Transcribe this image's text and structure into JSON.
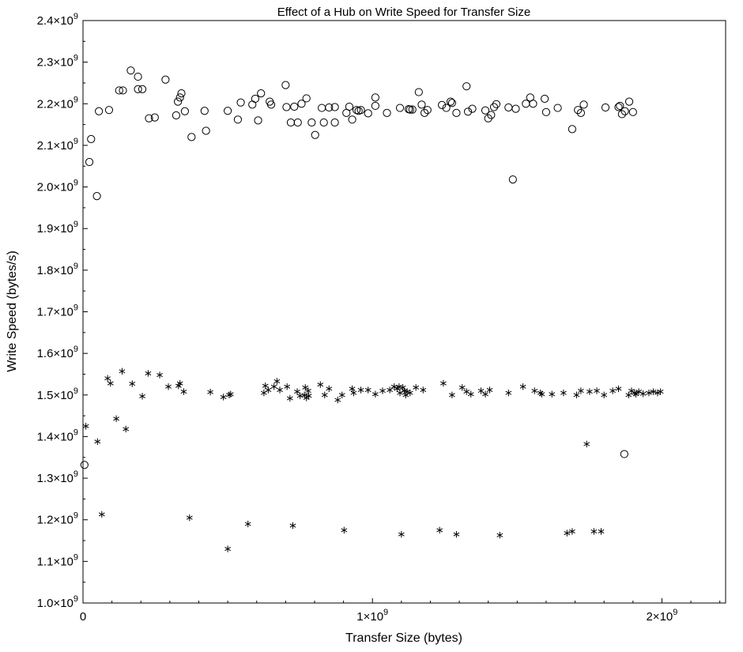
{
  "chart_data": {
    "type": "scatter",
    "title": "Effect of a Hub on Write Speed for Transfer Size",
    "xlabel": "Transfer Size (bytes)",
    "ylabel": "Write Speed (bytes/s)",
    "xlim": [
      0,
      2220000000
    ],
    "ylim": [
      1000000000,
      2400000000
    ],
    "grid": false,
    "x_ticks": [
      {
        "value": 0,
        "label": "0"
      },
      {
        "value": 1000000000,
        "label": "1×10",
        "exp": "9"
      },
      {
        "value": 2000000000,
        "label": "2×10",
        "exp": "9"
      }
    ],
    "y_ticks": [
      {
        "value": 1000000000,
        "label": "1.0×10",
        "exp": "9"
      },
      {
        "value": 1100000000,
        "label": "1.1×10",
        "exp": "9"
      },
      {
        "value": 1200000000,
        "label": "1.2×10",
        "exp": "9"
      },
      {
        "value": 1300000000,
        "label": "1.3×10",
        "exp": "9"
      },
      {
        "value": 1400000000,
        "label": "1.4×10",
        "exp": "9"
      },
      {
        "value": 1500000000,
        "label": "1.5×10",
        "exp": "9"
      },
      {
        "value": 1600000000,
        "label": "1.6×10",
        "exp": "9"
      },
      {
        "value": 1700000000,
        "label": "1.7×10",
        "exp": "9"
      },
      {
        "value": 1800000000,
        "label": "1.8×10",
        "exp": "9"
      },
      {
        "value": 1900000000,
        "label": "1.9×10",
        "exp": "9"
      },
      {
        "value": 2000000000,
        "label": "2.0×10",
        "exp": "9"
      },
      {
        "value": 2100000000,
        "label": "2.1×10",
        "exp": "9"
      },
      {
        "value": 2200000000,
        "label": "2.2×10",
        "exp": "9"
      },
      {
        "value": 2300000000,
        "label": "2.3×10",
        "exp": "9"
      },
      {
        "value": 2400000000,
        "label": "2.4×10",
        "exp": "9"
      }
    ],
    "series": [
      {
        "marker": "circle",
        "color": "#000000",
        "points": [
          [
            0.005,
            1.332
          ],
          [
            0.022,
            2.06
          ],
          [
            0.028,
            2.115
          ],
          [
            0.048,
            1.978
          ],
          [
            0.055,
            2.182
          ],
          [
            0.09,
            2.185
          ],
          [
            0.125,
            2.232
          ],
          [
            0.138,
            2.232
          ],
          [
            0.165,
            2.28
          ],
          [
            0.19,
            2.265
          ],
          [
            0.19,
            2.235
          ],
          [
            0.205,
            2.235
          ],
          [
            0.228,
            2.165
          ],
          [
            0.248,
            2.167
          ],
          [
            0.285,
            2.258
          ],
          [
            0.322,
            2.172
          ],
          [
            0.328,
            2.205
          ],
          [
            0.335,
            2.215
          ],
          [
            0.34,
            2.225
          ],
          [
            0.352,
            2.182
          ],
          [
            0.375,
            2.12
          ],
          [
            0.42,
            2.183
          ],
          [
            0.425,
            2.135
          ],
          [
            0.5,
            2.183
          ],
          [
            0.535,
            2.162
          ],
          [
            0.545,
            2.203
          ],
          [
            0.585,
            2.198
          ],
          [
            0.595,
            2.212
          ],
          [
            0.605,
            2.16
          ],
          [
            0.615,
            2.225
          ],
          [
            0.645,
            2.205
          ],
          [
            0.65,
            2.198
          ],
          [
            0.7,
            2.245
          ],
          [
            0.703,
            2.192
          ],
          [
            0.718,
            2.155
          ],
          [
            0.73,
            2.193
          ],
          [
            0.742,
            2.155
          ],
          [
            0.755,
            2.2
          ],
          [
            0.772,
            2.213
          ],
          [
            0.79,
            2.155
          ],
          [
            0.802,
            2.125
          ],
          [
            0.825,
            2.19
          ],
          [
            0.832,
            2.155
          ],
          [
            0.85,
            2.191
          ],
          [
            0.87,
            2.192
          ],
          [
            0.87,
            2.155
          ],
          [
            0.91,
            2.178
          ],
          [
            0.92,
            2.193
          ],
          [
            0.93,
            2.162
          ],
          [
            0.945,
            2.185
          ],
          [
            0.952,
            2.183
          ],
          [
            0.96,
            2.185
          ],
          [
            0.985,
            2.177
          ],
          [
            1.01,
            2.215
          ],
          [
            1.01,
            2.195
          ],
          [
            1.05,
            2.178
          ],
          [
            1.095,
            2.19
          ],
          [
            1.125,
            2.187
          ],
          [
            1.13,
            2.186
          ],
          [
            1.138,
            2.186
          ],
          [
            1.16,
            2.228
          ],
          [
            1.17,
            2.198
          ],
          [
            1.18,
            2.178
          ],
          [
            1.19,
            2.185
          ],
          [
            1.24,
            2.197
          ],
          [
            1.255,
            2.19
          ],
          [
            1.27,
            2.205
          ],
          [
            1.275,
            2.202
          ],
          [
            1.29,
            2.178
          ],
          [
            1.325,
            2.242
          ],
          [
            1.33,
            2.181
          ],
          [
            1.345,
            2.188
          ],
          [
            1.39,
            2.184
          ],
          [
            1.4,
            2.165
          ],
          [
            1.41,
            2.173
          ],
          [
            1.42,
            2.192
          ],
          [
            1.428,
            2.199
          ],
          [
            1.47,
            2.191
          ],
          [
            1.485,
            2.018
          ],
          [
            1.495,
            2.188
          ],
          [
            1.53,
            2.2
          ],
          [
            1.545,
            2.215
          ],
          [
            1.555,
            2.2
          ],
          [
            1.595,
            2.212
          ],
          [
            1.6,
            2.18
          ],
          [
            1.64,
            2.19
          ],
          [
            1.69,
            2.139
          ],
          [
            1.71,
            2.185
          ],
          [
            1.72,
            2.178
          ],
          [
            1.73,
            2.198
          ],
          [
            1.805,
            2.191
          ],
          [
            1.85,
            2.192
          ],
          [
            1.855,
            2.195
          ],
          [
            1.862,
            2.175
          ],
          [
            1.87,
            1.358
          ],
          [
            1.872,
            2.182
          ],
          [
            1.887,
            2.205
          ],
          [
            1.9,
            2.18
          ]
        ]
      },
      {
        "marker": "asterisk",
        "color": "#000000",
        "points": [
          [
            0.01,
            1.425
          ],
          [
            0.05,
            1.388
          ],
          [
            0.065,
            1.213
          ],
          [
            0.085,
            1.54
          ],
          [
            0.095,
            1.528
          ],
          [
            0.115,
            1.443
          ],
          [
            0.135,
            1.557
          ],
          [
            0.148,
            1.418
          ],
          [
            0.17,
            1.527
          ],
          [
            0.205,
            1.497
          ],
          [
            0.225,
            1.552
          ],
          [
            0.265,
            1.548
          ],
          [
            0.295,
            1.52
          ],
          [
            0.33,
            1.522
          ],
          [
            0.335,
            1.528
          ],
          [
            0.348,
            1.508
          ],
          [
            0.368,
            1.205
          ],
          [
            0.44,
            1.507
          ],
          [
            0.485,
            1.495
          ],
          [
            0.5,
            1.13
          ],
          [
            0.505,
            1.5
          ],
          [
            0.51,
            1.502
          ],
          [
            0.57,
            1.19
          ],
          [
            0.625,
            1.505
          ],
          [
            0.63,
            1.522
          ],
          [
            0.64,
            1.512
          ],
          [
            0.66,
            1.52
          ],
          [
            0.67,
            1.533
          ],
          [
            0.68,
            1.512
          ],
          [
            0.705,
            1.52
          ],
          [
            0.715,
            1.492
          ],
          [
            0.725,
            1.186
          ],
          [
            0.74,
            1.508
          ],
          [
            0.75,
            1.498
          ],
          [
            0.765,
            1.5
          ],
          [
            0.768,
            1.518
          ],
          [
            0.772,
            1.493
          ],
          [
            0.778,
            1.51
          ],
          [
            0.78,
            1.498
          ],
          [
            0.82,
            1.525
          ],
          [
            0.835,
            1.5
          ],
          [
            0.85,
            1.515
          ],
          [
            0.88,
            1.488
          ],
          [
            0.895,
            1.5
          ],
          [
            0.902,
            1.175
          ],
          [
            0.93,
            1.515
          ],
          [
            0.935,
            1.505
          ],
          [
            0.96,
            1.512
          ],
          [
            0.985,
            1.512
          ],
          [
            1.01,
            1.502
          ],
          [
            1.035,
            1.51
          ],
          [
            1.06,
            1.512
          ],
          [
            1.075,
            1.52
          ],
          [
            1.085,
            1.515
          ],
          [
            1.092,
            1.52
          ],
          [
            1.095,
            1.505
          ],
          [
            1.1,
            1.165
          ],
          [
            1.105,
            1.518
          ],
          [
            1.11,
            1.51
          ],
          [
            1.115,
            1.5
          ],
          [
            1.12,
            1.508
          ],
          [
            1.13,
            1.505
          ],
          [
            1.15,
            1.518
          ],
          [
            1.175,
            1.512
          ],
          [
            1.232,
            1.175
          ],
          [
            1.245,
            1.528
          ],
          [
            1.275,
            1.5
          ],
          [
            1.29,
            1.165
          ],
          [
            1.31,
            1.518
          ],
          [
            1.325,
            1.508
          ],
          [
            1.34,
            1.502
          ],
          [
            1.375,
            1.51
          ],
          [
            1.39,
            1.502
          ],
          [
            1.405,
            1.512
          ],
          [
            1.44,
            1.163
          ],
          [
            1.47,
            1.505
          ],
          [
            1.52,
            1.52
          ],
          [
            1.56,
            1.51
          ],
          [
            1.58,
            1.505
          ],
          [
            1.585,
            1.502
          ],
          [
            1.62,
            1.502
          ],
          [
            1.66,
            1.505
          ],
          [
            1.672,
            1.168
          ],
          [
            1.69,
            1.172
          ],
          [
            1.705,
            1.5
          ],
          [
            1.72,
            1.51
          ],
          [
            1.74,
            1.382
          ],
          [
            1.75,
            1.508
          ],
          [
            1.765,
            1.172
          ],
          [
            1.775,
            1.51
          ],
          [
            1.79,
            1.172
          ],
          [
            1.8,
            1.5
          ],
          [
            1.83,
            1.51
          ],
          [
            1.85,
            1.515
          ],
          [
            1.885,
            1.5
          ],
          [
            1.895,
            1.51
          ],
          [
            1.905,
            1.505
          ],
          [
            1.91,
            1.502
          ],
          [
            1.92,
            1.508
          ],
          [
            1.935,
            1.503
          ],
          [
            1.955,
            1.505
          ],
          [
            1.97,
            1.508
          ],
          [
            1.985,
            1.505
          ],
          [
            1.995,
            1.508
          ]
        ]
      }
    ]
  }
}
